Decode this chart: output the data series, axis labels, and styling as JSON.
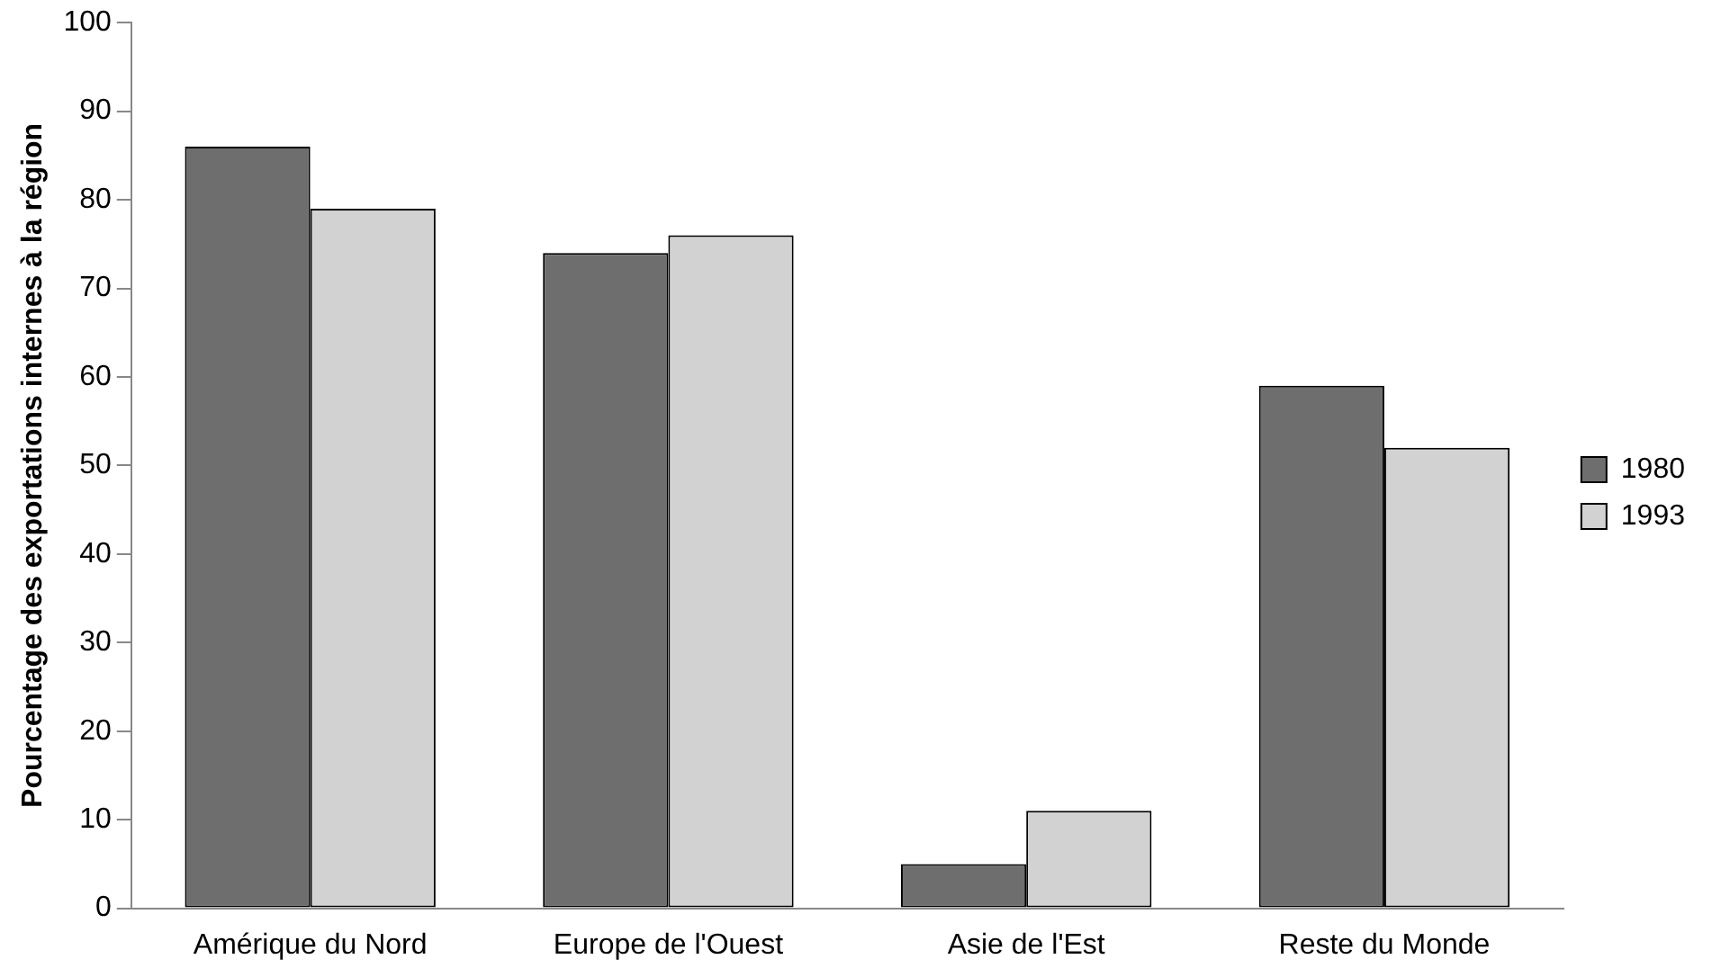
{
  "chart_data": {
    "type": "bar",
    "ylabel": "Pourcentage des exportations internes à la région",
    "categories": [
      "Amérique du Nord",
      "Europe de l'Ouest",
      "Asie de l'Est",
      "Reste du Monde"
    ],
    "series": [
      {
        "name": "1980",
        "color": "#6e6e6e",
        "values": [
          86,
          74,
          5,
          59
        ]
      },
      {
        "name": "1993",
        "color": "#d2d2d2",
        "values": [
          79,
          76,
          11,
          52
        ]
      }
    ],
    "ylim": [
      0,
      100
    ],
    "yticks": [
      0,
      10,
      20,
      30,
      40,
      50,
      60,
      70,
      80,
      90,
      100
    ],
    "grid": false,
    "legend": "right"
  }
}
